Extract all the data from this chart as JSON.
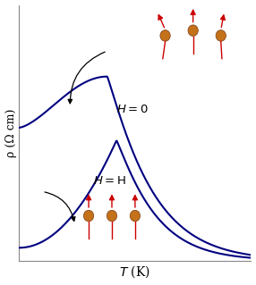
{
  "xlabel": "T (K)",
  "ylabel": "ρ (Ω cm)",
  "background_color": "#ffffff",
  "curve_color": "#000080",
  "curve_linewidth": 1.5,
  "label_H0": "$H = 0$",
  "label_HH": "$H = $ H",
  "spin_circle_color": "#C4721A",
  "arrow_color": "#CC0000",
  "xlim": [
    0,
    1
  ],
  "ylim": [
    0,
    1
  ]
}
